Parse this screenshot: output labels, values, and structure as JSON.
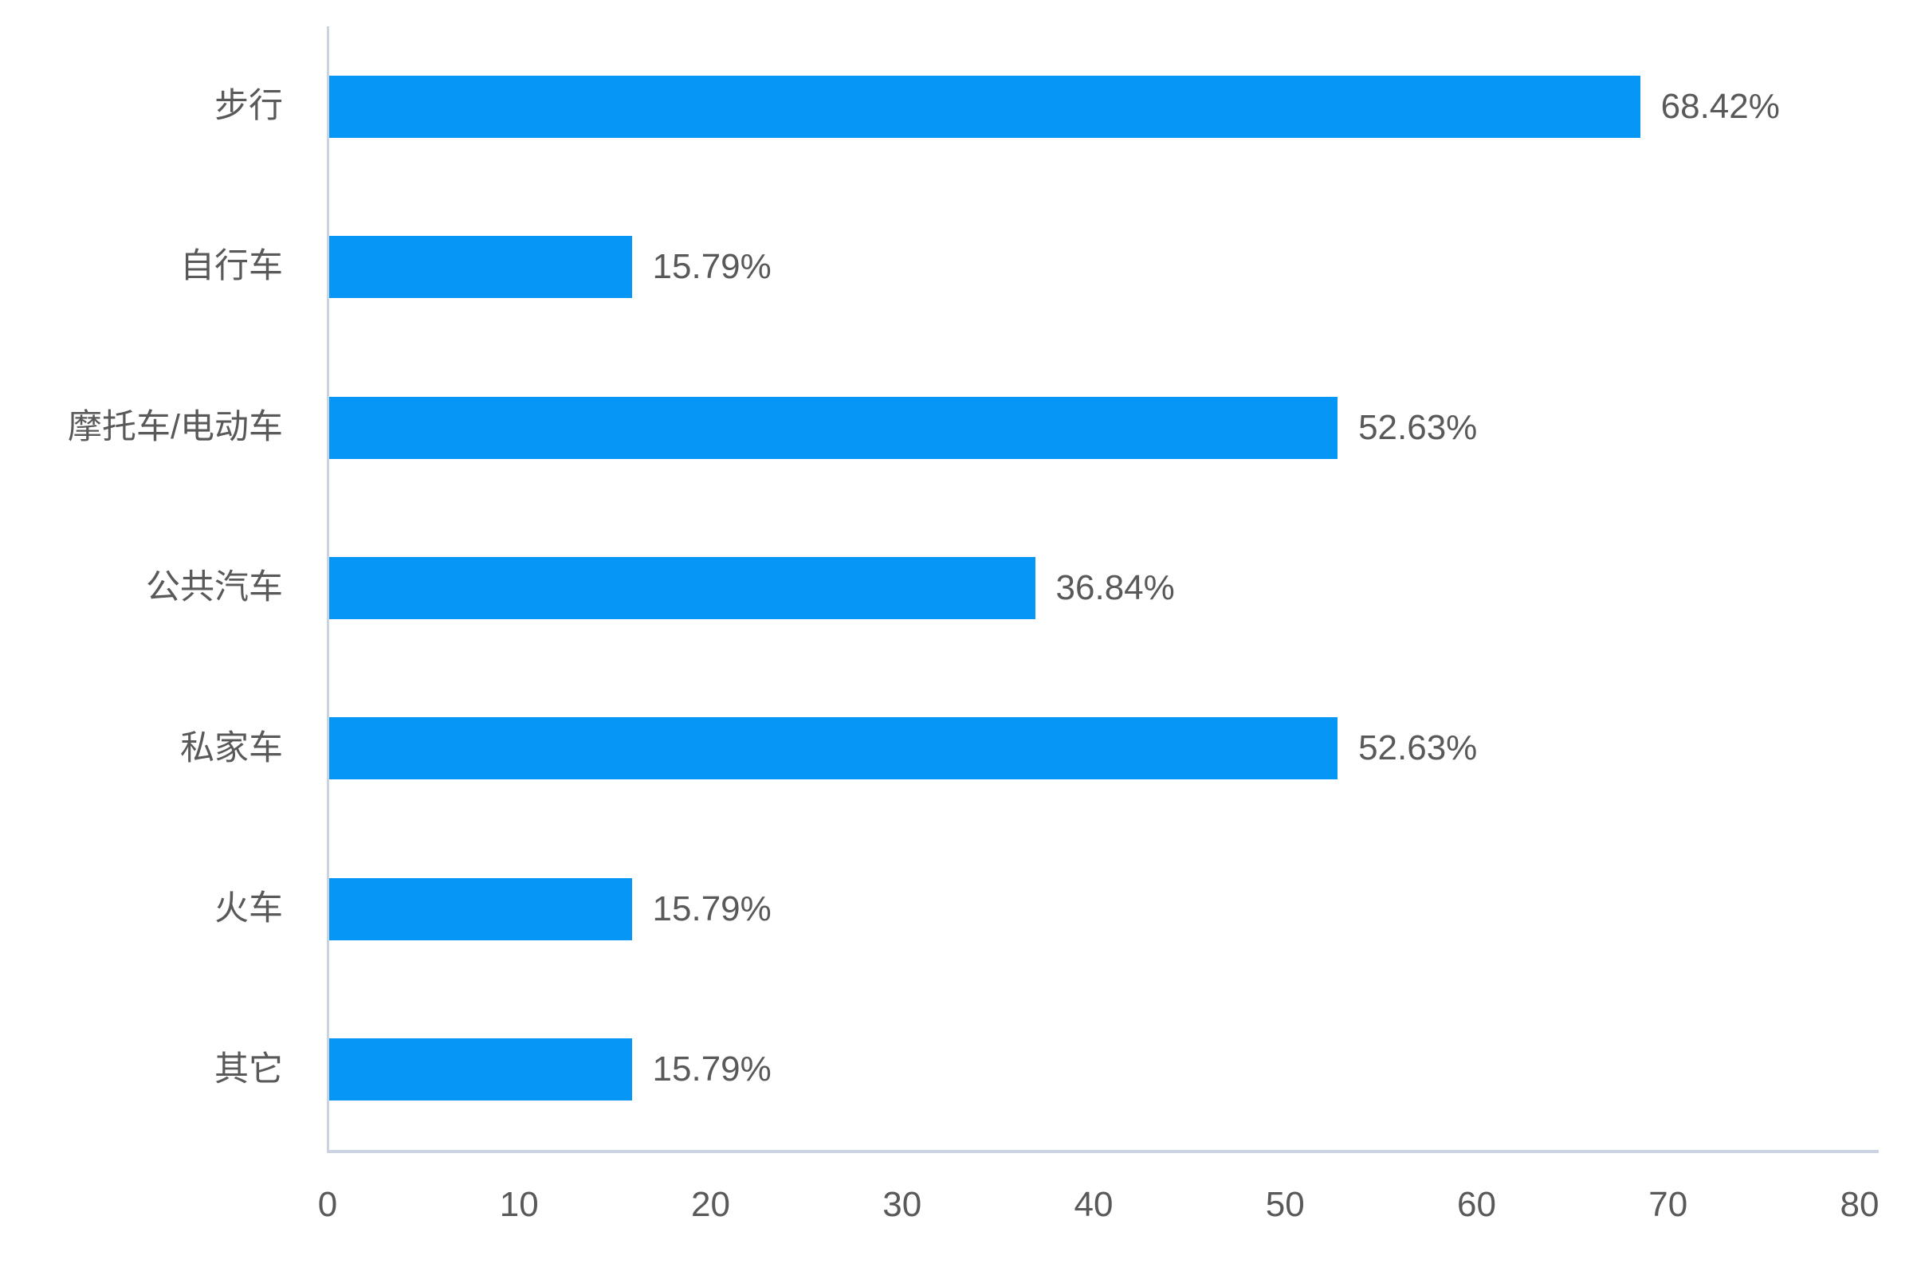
{
  "chart_data": {
    "type": "bar",
    "orientation": "horizontal",
    "title": "",
    "xlabel": "",
    "ylabel": "",
    "categories": [
      "步行",
      "自行车",
      "摩托车/电动车",
      "公共汽车",
      "私家车",
      "火车",
      "其它"
    ],
    "values": [
      68.42,
      15.79,
      52.63,
      36.84,
      52.63,
      15.79,
      15.79
    ],
    "value_labels": [
      "68.42%",
      "15.79%",
      "52.63%",
      "36.84%",
      "52.63%",
      "15.79%",
      "15.79%"
    ],
    "x_ticks": [
      0,
      10,
      20,
      30,
      40,
      50,
      60,
      70,
      80
    ],
    "xlim": [
      0,
      80
    ],
    "grid": false,
    "legend": false,
    "value_labels_position": "outside-end",
    "colors": {
      "bar": "#0696F6",
      "text": "#595959",
      "axis_line": "#C9D3E2",
      "background": "#FFFFFF"
    }
  }
}
